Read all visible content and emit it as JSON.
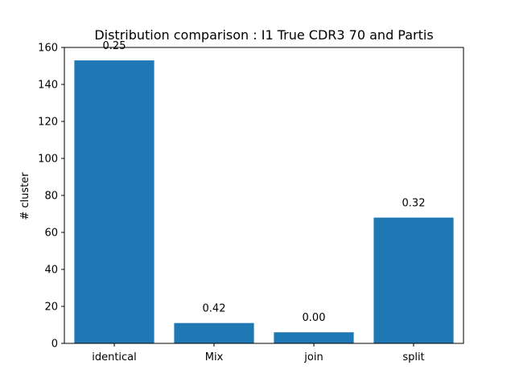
{
  "chart_data": {
    "type": "bar",
    "title": "Distribution comparison : I1 True CDR3 70 and Partis",
    "xlabel": "",
    "ylabel": "# cluster",
    "categories": [
      "identical",
      "Mix",
      "join",
      "split"
    ],
    "values": [
      153,
      11,
      6,
      68
    ],
    "bar_labels": [
      "0.25",
      "0.42",
      "0.00",
      "0.32"
    ],
    "ylim": [
      0,
      160
    ],
    "yticks": [
      0,
      20,
      40,
      60,
      80,
      100,
      120,
      140,
      160
    ],
    "grid": false,
    "legend": "none",
    "bar_color": "#1f77b4"
  }
}
